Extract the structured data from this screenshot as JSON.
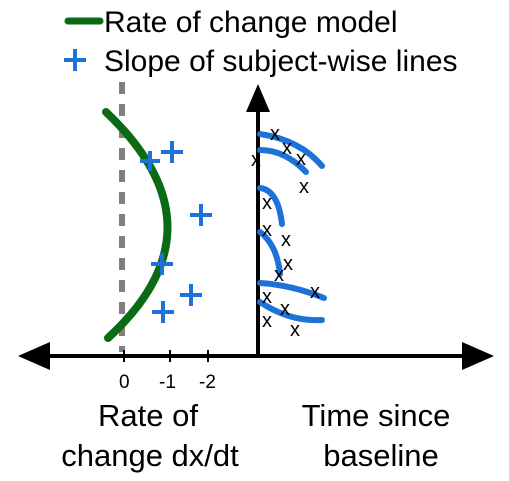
{
  "legend": {
    "items": [
      {
        "label": "Rate of change model",
        "color": "#0a6b14"
      },
      {
        "label": "Slope of subject-wise lines",
        "color": "#1c72d8"
      }
    ]
  },
  "axes": {
    "rate_ticks": [
      "0",
      "-1",
      "-2"
    ],
    "left_label_line1": "Rate of",
    "left_label_line2": "change dx/dt",
    "right_label_line1": "Time since",
    "right_label_line2": "baseline"
  },
  "markers": {
    "observation_symbol": "x"
  },
  "colors": {
    "model_curve": "#0a6b14",
    "subject_slopes": "#1c72d8",
    "axes": "#000000",
    "zero_line": "#7f7f7f"
  }
}
